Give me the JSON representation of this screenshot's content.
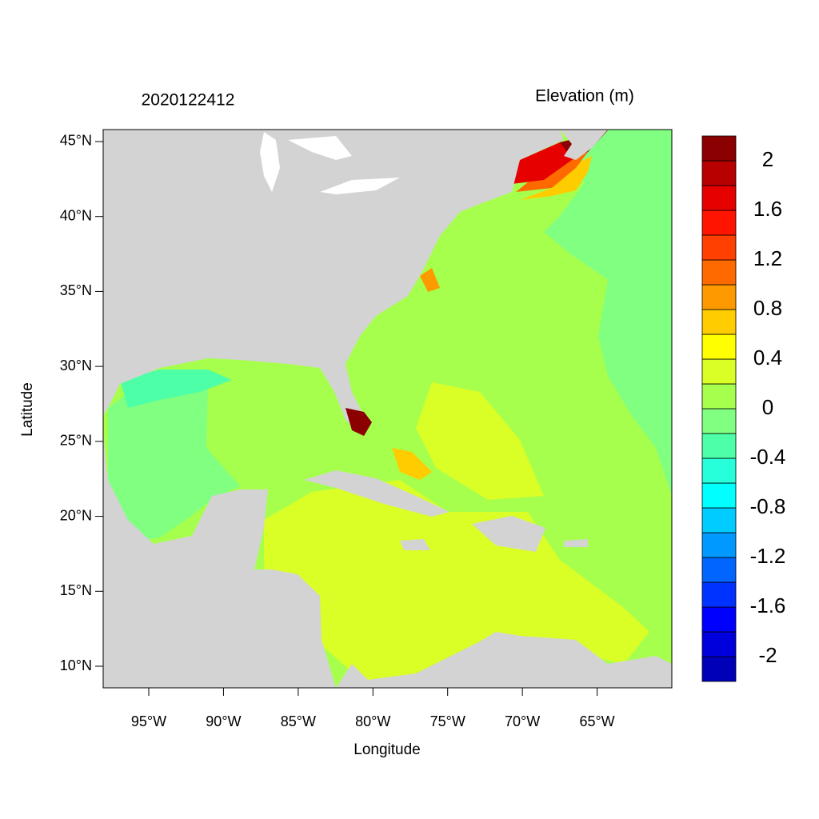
{
  "chart_data": {
    "type": "map",
    "title_left": "2020122412",
    "title_right": "Elevation (m)",
    "xlabel": "Longitude",
    "ylabel": "Latitude",
    "xlim": [
      -98.05,
      -60
    ],
    "ylim": [
      8.56,
      45.8
    ],
    "xticks": [
      {
        "value": -95,
        "label": "95°W"
      },
      {
        "value": -90,
        "label": "90°W"
      },
      {
        "value": -85,
        "label": "85°W"
      },
      {
        "value": -80,
        "label": "80°W"
      },
      {
        "value": -75,
        "label": "75°W"
      },
      {
        "value": -70,
        "label": "70°W"
      },
      {
        "value": -65,
        "label": "65°W"
      }
    ],
    "yticks": [
      {
        "value": 10,
        "label": "10°N"
      },
      {
        "value": 15,
        "label": "15°N"
      },
      {
        "value": 20,
        "label": "20°N"
      },
      {
        "value": 25,
        "label": "25°N"
      },
      {
        "value": 30,
        "label": "30°N"
      },
      {
        "value": 35,
        "label": "35°N"
      },
      {
        "value": 40,
        "label": "40°N"
      },
      {
        "value": 45,
        "label": "45°N"
      }
    ],
    "colorbar": {
      "range": [
        -2.2,
        2.2
      ],
      "colors": [
        "#0000b8",
        "#0000dd",
        "#0000ff",
        "#0033ff",
        "#0066ff",
        "#0099ff",
        "#00ccff",
        "#00ffff",
        "#26ffd9",
        "#4dffa6",
        "#80ff80",
        "#a6ff4d",
        "#d9ff26",
        "#ffff00",
        "#ffcc00",
        "#ff9900",
        "#ff6a00",
        "#ff4000",
        "#ff1400",
        "#e60000",
        "#b80000",
        "#8b0000"
      ],
      "ticks": [
        -2,
        -1.6,
        -1.2,
        -0.8,
        -0.4,
        0,
        0.4,
        0.8,
        1.2,
        1.6,
        2
      ]
    }
  }
}
